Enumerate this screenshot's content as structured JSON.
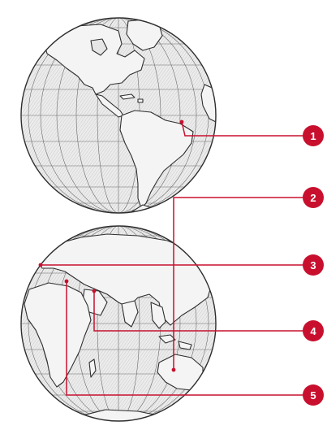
{
  "colors": {
    "leader": "#c8102e",
    "badge": "#c8102e",
    "badge_text": "#ffffff",
    "globe_ink": "#3a3a3a",
    "globe_shade": "#d9d9d9"
  },
  "globes": [
    {
      "name": "western-hemisphere"
    },
    {
      "name": "eastern-hemisphere"
    }
  ],
  "callouts": [
    {
      "number": "1"
    },
    {
      "number": "2"
    },
    {
      "number": "3"
    },
    {
      "number": "4"
    },
    {
      "number": "5"
    }
  ]
}
